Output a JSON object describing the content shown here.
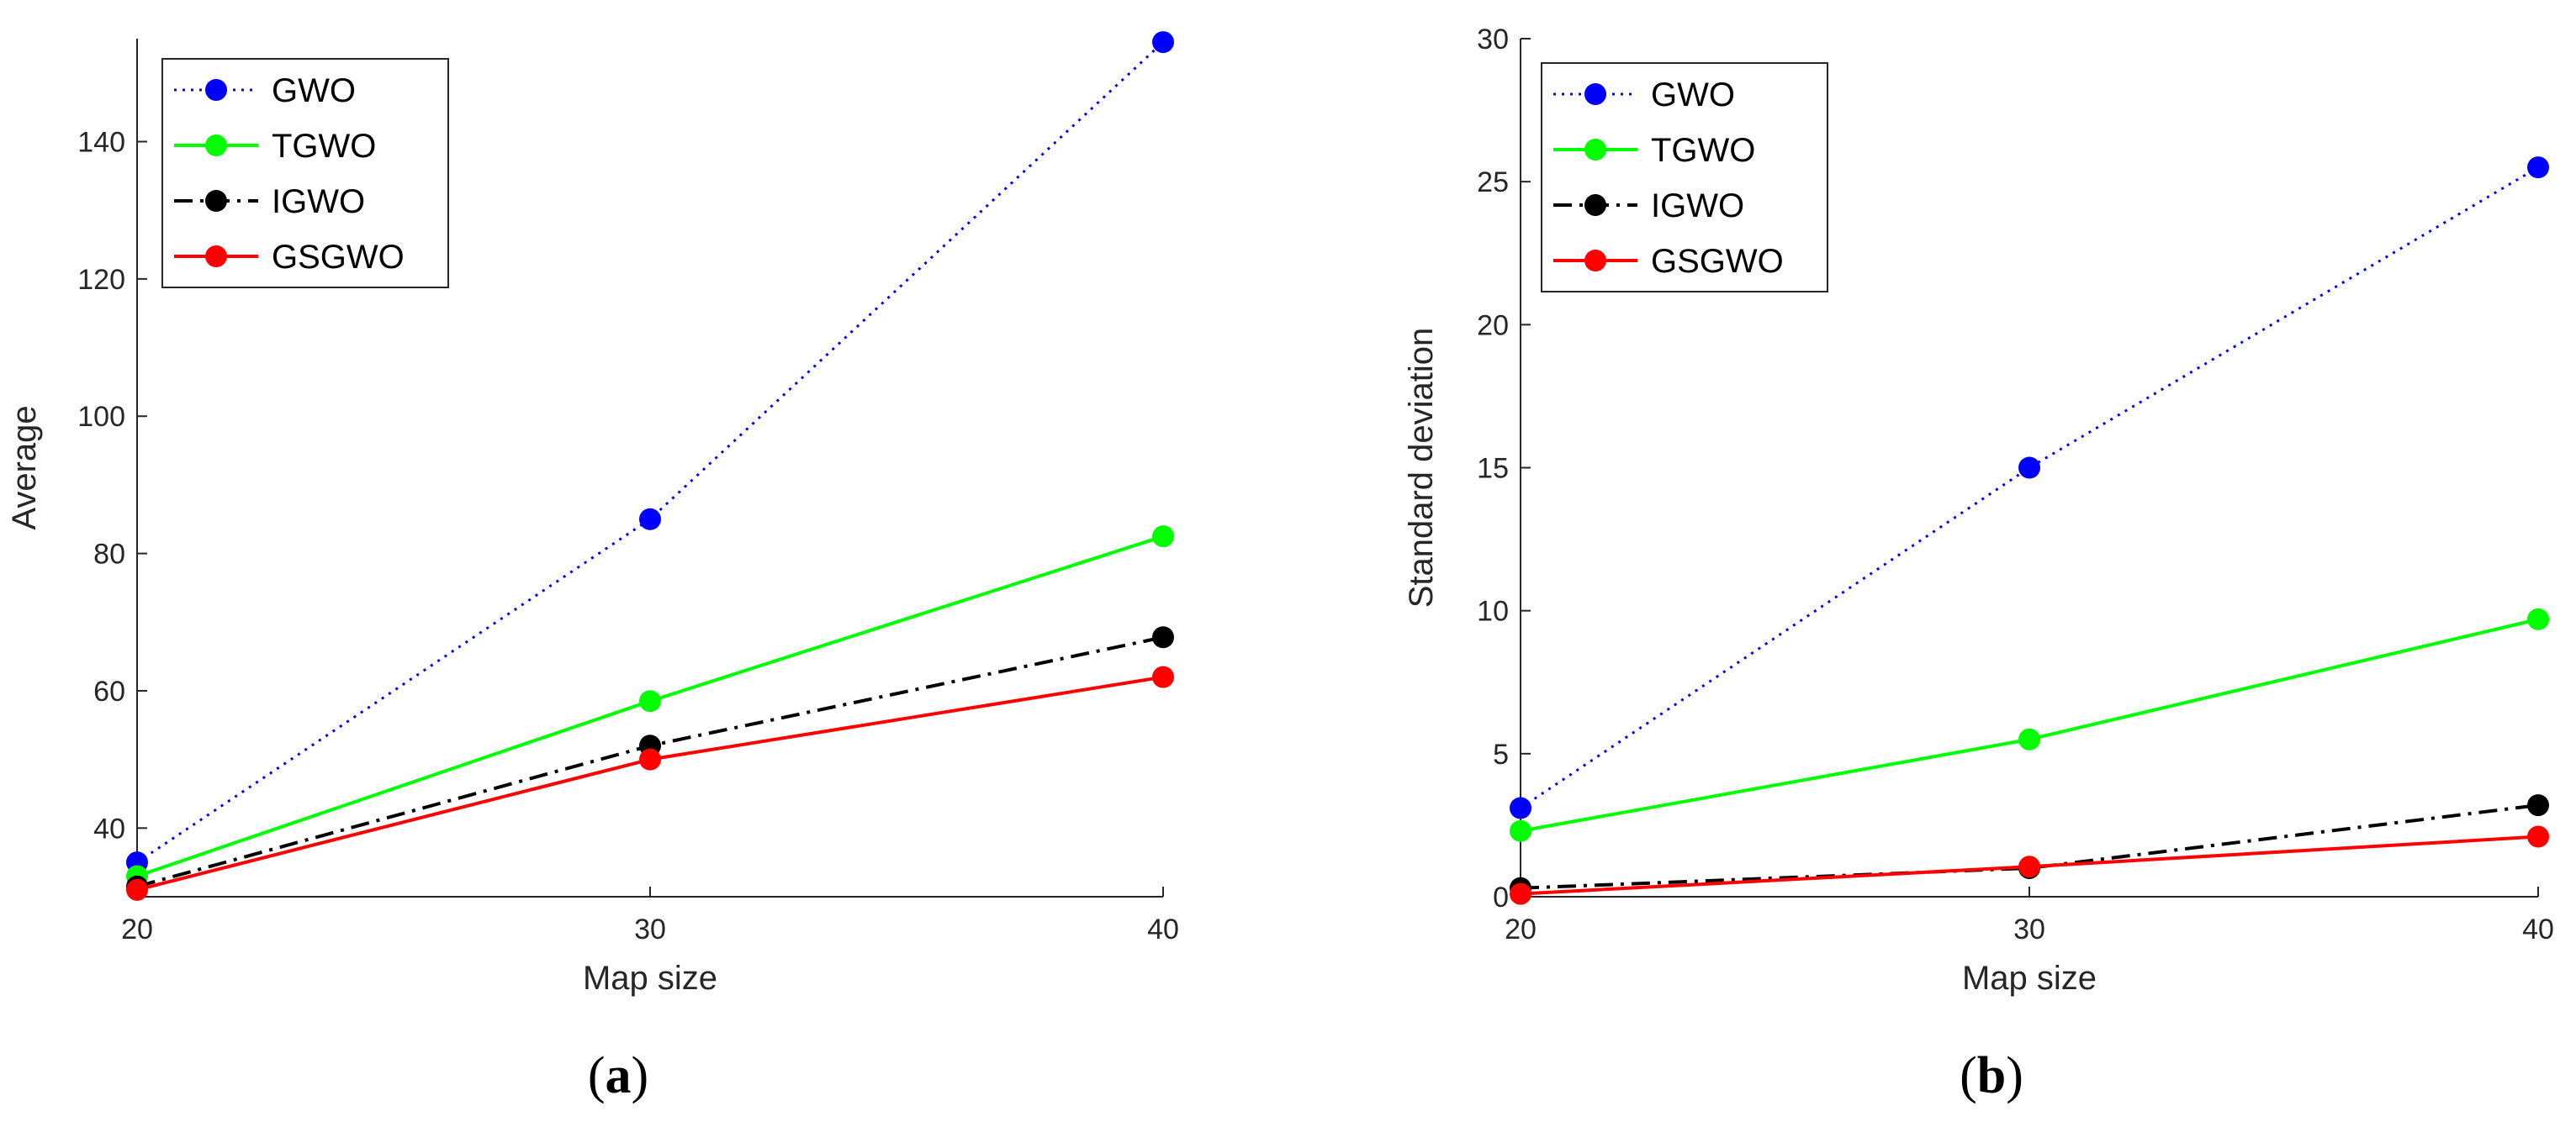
{
  "chart_data": [
    {
      "type": "line",
      "panel_label": "(a)",
      "panel_letter": "a",
      "xlabel": "Map size",
      "ylabel": "Average",
      "x": [
        20,
        30,
        40
      ],
      "xlim": [
        20,
        40
      ],
      "ylim": [
        30,
        155
      ],
      "xticks": [
        20,
        30,
        40
      ],
      "yticks": [
        40,
        60,
        80,
        100,
        120,
        140
      ],
      "grid": false,
      "legend_position": "top-left",
      "series": [
        {
          "name": "GWO",
          "values": [
            35.0,
            85.0,
            154.5
          ],
          "color": "#0000ff",
          "style": "dotted"
        },
        {
          "name": "TGWO",
          "values": [
            33.0,
            58.5,
            82.5
          ],
          "color": "#00ff00",
          "style": "solid"
        },
        {
          "name": "IGWO",
          "values": [
            31.5,
            52.0,
            67.8
          ],
          "color": "#000000",
          "style": "dashdot"
        },
        {
          "name": "GSGWO",
          "values": [
            31.0,
            50.0,
            62.0
          ],
          "color": "#ff0000",
          "style": "solid"
        }
      ]
    },
    {
      "type": "line",
      "panel_label": "(b)",
      "panel_letter": "b",
      "xlabel": "Map size",
      "ylabel": "Standard deviation",
      "x": [
        20,
        30,
        40
      ],
      "xlim": [
        20,
        40
      ],
      "ylim": [
        0,
        30
      ],
      "xticks": [
        20,
        30,
        40
      ],
      "yticks": [
        0,
        5,
        10,
        15,
        20,
        25,
        30
      ],
      "grid": false,
      "legend_position": "top-left",
      "series": [
        {
          "name": "GWO",
          "values": [
            3.1,
            15.0,
            25.5
          ],
          "color": "#0000ff",
          "style": "dotted"
        },
        {
          "name": "TGWO",
          "values": [
            2.3,
            5.5,
            9.7
          ],
          "color": "#00ff00",
          "style": "solid"
        },
        {
          "name": "IGWO",
          "values": [
            0.3,
            1.0,
            3.2
          ],
          "color": "#000000",
          "style": "dashdot"
        },
        {
          "name": "GSGWO",
          "values": [
            0.1,
            1.05,
            2.1
          ],
          "color": "#ff0000",
          "style": "solid"
        }
      ]
    }
  ]
}
